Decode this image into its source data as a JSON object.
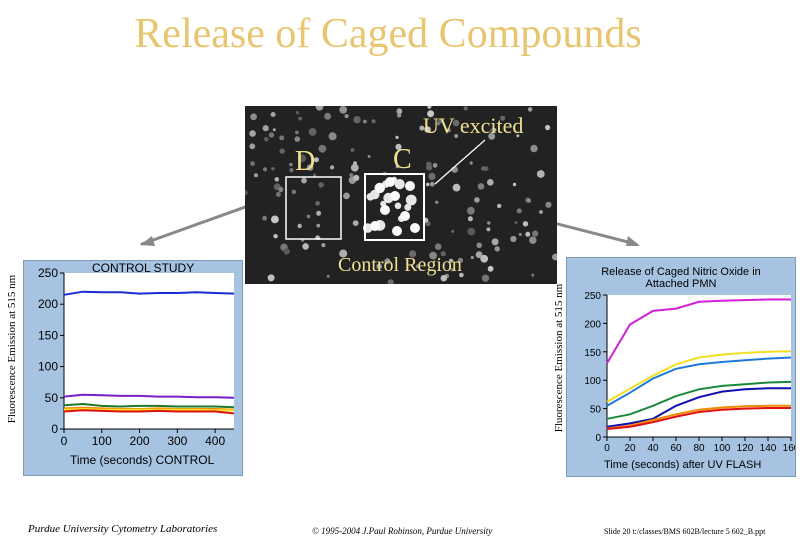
{
  "slide": {
    "title": "Release of Caged Compounds",
    "footer_left": "Purdue University Cytometry Laboratories",
    "footer_mid": "© 1995-2004 J.Paul Robinson, Purdue University",
    "footer_right": "Slide 20 t:/classes/BMS 602B/lecture 5 602_B.ppt"
  },
  "micrograph": {
    "label_uv": "UV excited",
    "label_c": "C",
    "label_d": "D",
    "label_control": "Control Region"
  },
  "colors": {
    "title": "#e8c670",
    "panel_bg": "#a6c4e2",
    "blue": "#1a2bd4",
    "purple": "#7a1fc8",
    "green": "#1f7a2a",
    "red": "#e01010",
    "orange": "#f08a00",
    "yellow": "#f0e020",
    "magenta": "#d020d8",
    "sky": "#1e7ad8",
    "darkgreen": "#1a8a3a",
    "navy": "#1010b0"
  },
  "chart_data": [
    {
      "type": "line",
      "title": "CONTROL STUDY",
      "xlabel": "Time (seconds) CONTROL",
      "ylabel": "Fluorescence Emission at 515 nm",
      "xlim": [
        0,
        450
      ],
      "ylim": [
        0,
        250
      ],
      "xticks": [
        0,
        100,
        200,
        300,
        400
      ],
      "yticks": [
        0,
        50,
        100,
        150,
        200,
        250
      ],
      "x": [
        0,
        50,
        100,
        150,
        200,
        250,
        300,
        350,
        400,
        450
      ],
      "series": [
        {
          "color": "blue",
          "values": [
            215,
            220,
            219,
            219,
            217,
            218,
            218,
            219,
            218,
            217
          ]
        },
        {
          "color": "purple",
          "values": [
            52,
            55,
            54,
            53,
            53,
            52,
            52,
            51,
            51,
            50
          ]
        },
        {
          "color": "green",
          "values": [
            38,
            40,
            37,
            36,
            37,
            37,
            36,
            36,
            36,
            35
          ]
        },
        {
          "color": "orange",
          "values": [
            33,
            34,
            33,
            32,
            32,
            33,
            32,
            32,
            32,
            31
          ]
        },
        {
          "color": "yellow",
          "values": [
            31,
            32,
            31,
            31,
            31,
            31,
            31,
            31,
            30,
            30
          ]
        },
        {
          "color": "red",
          "values": [
            28,
            30,
            29,
            28,
            28,
            29,
            28,
            28,
            28,
            25
          ]
        }
      ]
    },
    {
      "type": "line",
      "title": "Release of Caged Nitric Oxide in Attached PMN",
      "xlabel": "Time (seconds)   after UV FLASH",
      "ylabel": "Fluorescence Emission at 515 nm",
      "xlim": [
        0,
        160
      ],
      "ylim": [
        0,
        250
      ],
      "xticks": [
        0,
        20,
        40,
        60,
        80,
        100,
        120,
        140,
        160
      ],
      "yticks": [
        0,
        50,
        100,
        150,
        200,
        250
      ],
      "x": [
        0,
        20,
        40,
        60,
        80,
        100,
        120,
        140,
        160
      ],
      "series": [
        {
          "color": "magenta",
          "values": [
            130,
            198,
            222,
            226,
            238,
            240,
            241,
            242,
            242
          ]
        },
        {
          "color": "yellow",
          "values": [
            62,
            85,
            108,
            128,
            140,
            145,
            148,
            150,
            151
          ]
        },
        {
          "color": "sky",
          "values": [
            55,
            78,
            103,
            120,
            128,
            132,
            135,
            138,
            140
          ]
        },
        {
          "color": "darkgreen",
          "values": [
            32,
            40,
            55,
            72,
            84,
            90,
            93,
            96,
            97
          ]
        },
        {
          "color": "navy",
          "values": [
            18,
            24,
            32,
            55,
            70,
            80,
            84,
            86,
            86
          ]
        },
        {
          "color": "orange",
          "values": [
            15,
            20,
            30,
            40,
            48,
            52,
            54,
            55,
            55
          ]
        },
        {
          "color": "red",
          "values": [
            14,
            18,
            26,
            36,
            44,
            48,
            50,
            51,
            51
          ]
        }
      ]
    }
  ]
}
